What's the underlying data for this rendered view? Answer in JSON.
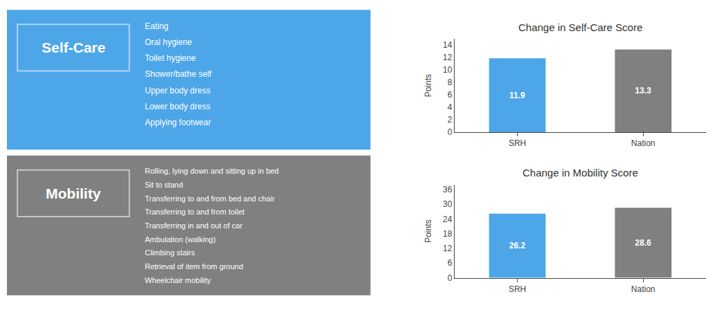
{
  "chart_data": [
    {
      "type": "bar",
      "title": "Change in Self-Care Score",
      "ylabel": "Points",
      "categories": [
        "SRH",
        "Nation"
      ],
      "values": [
        11.9,
        13.3
      ],
      "colors": [
        "#4da6e8",
        "#808080"
      ],
      "ylim": [
        0,
        15
      ],
      "yticks": [
        0,
        2,
        4,
        6,
        8,
        10,
        12,
        14
      ],
      "grid": false,
      "data_labels": true,
      "annotations": [
        "Self-Care",
        "Eating",
        "Oral hygiene",
        "Toilet hygiene",
        "Shower/bathe self",
        "Upper body dress",
        "Lower body dress",
        "Applying footwear"
      ]
    },
    {
      "type": "bar",
      "title": "Change in Mobility Score",
      "ylabel": "Points",
      "categories": [
        "SRH",
        "Nation"
      ],
      "values": [
        26.2,
        28.6
      ],
      "colors": [
        "#4da6e8",
        "#808080"
      ],
      "ylim": [
        0,
        38
      ],
      "yticks": [
        0,
        6,
        12,
        18,
        24,
        30,
        36
      ],
      "grid": false,
      "data_labels": true,
      "annotations": [
        "Mobility",
        "Rolling, lying down and sitting up in bed",
        "Sit to stand",
        "Transferring to and from bed and chair",
        "Transferring to and from toilet",
        "Transferring in and out of car",
        "Ambulation (walking)",
        "Climbing stairs",
        "Retrieval of item from ground",
        "Wheelchair mobility"
      ]
    }
  ]
}
